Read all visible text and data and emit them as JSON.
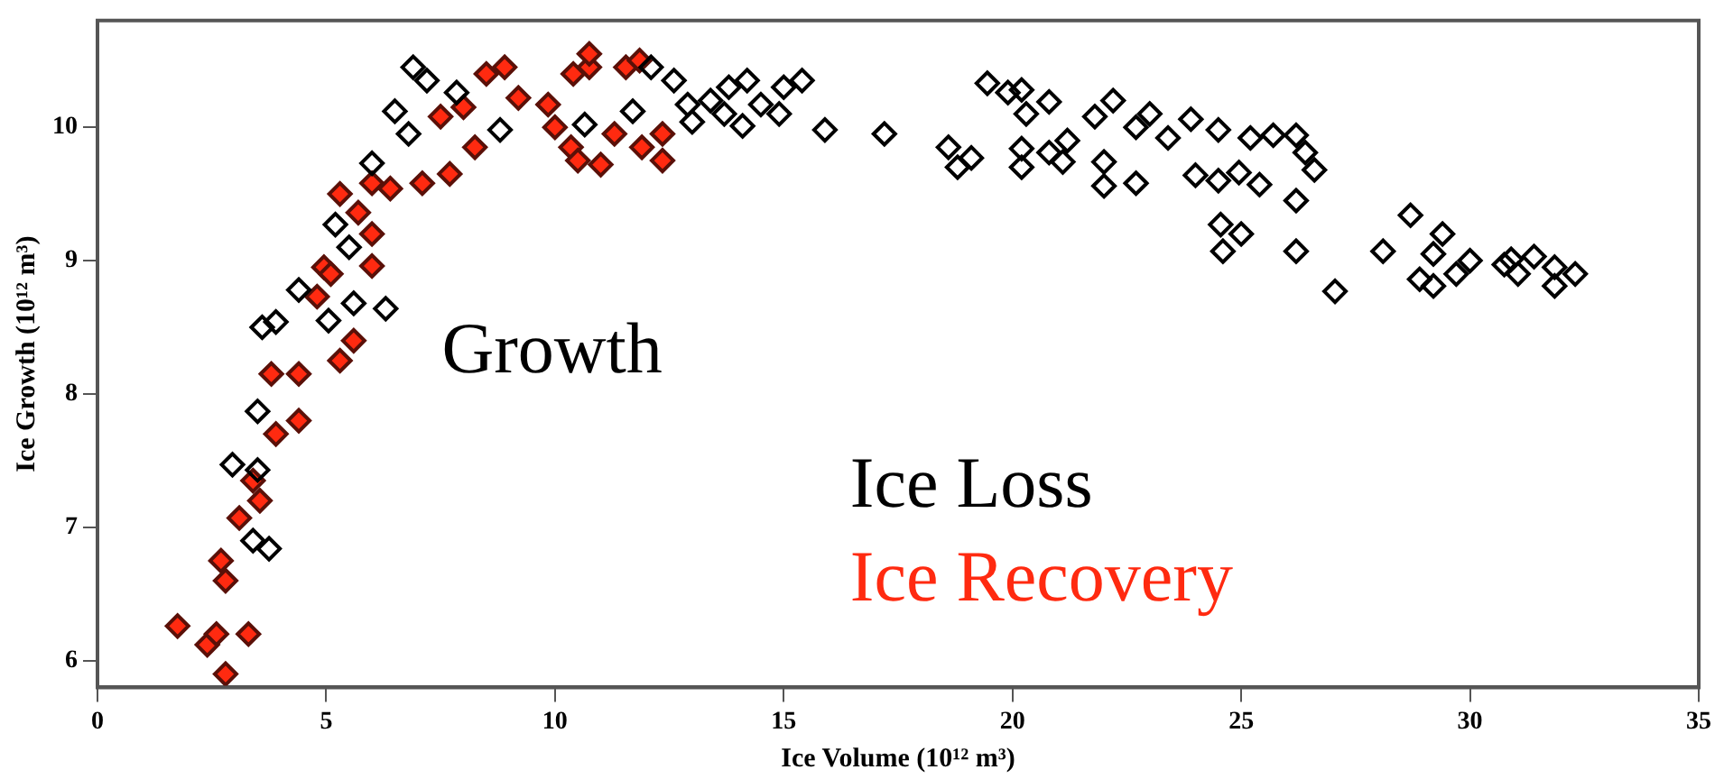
{
  "chart_data": {
    "type": "scatter",
    "xlabel": "Ice Volume (10¹² m³)",
    "ylabel": "Ice Growth (10¹² m³)",
    "annotations": [
      "Growth"
    ],
    "xlim": [
      0,
      35
    ],
    "ylim": [
      5.8,
      10.8
    ],
    "xticks": [
      0,
      5,
      10,
      15,
      20,
      25,
      30,
      35
    ],
    "yticks": [
      6,
      7,
      8,
      9,
      10
    ],
    "grid": false,
    "marker": "diamond",
    "legend": "bottom",
    "series": [
      {
        "name": "Ice Loss",
        "color": "#000000",
        "x": [
          6.9,
          7.2,
          6.5,
          6.8,
          6.0,
          5.2,
          5.5,
          6.3,
          5.6,
          4.4,
          3.6,
          3.9,
          3.5,
          2.95,
          3.5,
          3.75,
          3.4,
          5.05,
          7.85,
          8.8,
          10.65,
          11.7,
          12.1,
          12.6,
          13.0,
          13.4,
          13.8,
          14.1,
          14.5,
          15.0,
          15.4,
          14.9,
          15.9,
          12.9,
          13.7,
          14.2,
          17.2,
          18.6,
          19.1,
          18.8,
          19.45,
          19.9,
          20.2,
          20.8,
          20.3,
          20.2,
          20.2,
          20.8,
          21.2,
          21.1,
          21.8,
          22.2,
          22.0,
          22.0,
          22.7,
          22.7,
          23.0,
          23.4,
          23.9,
          24.5,
          24.0,
          24.5,
          24.95,
          25.4,
          25.2,
          25.7,
          26.2,
          26.4,
          26.6,
          26.2,
          24.55,
          25.0,
          24.6,
          26.2,
          27.05,
          28.1,
          28.7,
          29.4,
          29.2,
          28.9,
          29.2,
          30.0,
          29.7,
          30.75,
          31.05,
          31.4,
          31.85,
          31.85,
          32.3,
          30.9
        ],
        "values": [
          10.45,
          10.35,
          10.12,
          9.95,
          9.73,
          9.27,
          9.1,
          8.64,
          8.68,
          8.78,
          8.5,
          8.54,
          7.87,
          7.47,
          7.43,
          6.84,
          6.9,
          8.55,
          10.26,
          9.98,
          10.02,
          10.12,
          10.45,
          10.35,
          10.04,
          10.2,
          10.3,
          10.01,
          10.17,
          10.3,
          10.35,
          10.1,
          9.98,
          10.17,
          10.1,
          10.35,
          9.95,
          9.85,
          9.77,
          9.7,
          10.33,
          10.26,
          10.28,
          10.19,
          10.1,
          9.84,
          9.7,
          9.81,
          9.9,
          9.74,
          10.08,
          10.2,
          9.56,
          9.74,
          9.58,
          10.0,
          10.1,
          9.92,
          10.06,
          9.98,
          9.64,
          9.6,
          9.66,
          9.57,
          9.92,
          9.94,
          9.94,
          9.81,
          9.68,
          9.45,
          9.27,
          9.2,
          9.07,
          9.07,
          8.77,
          9.07,
          9.34,
          9.2,
          9.05,
          8.86,
          8.81,
          9.0,
          8.9,
          8.97,
          8.9,
          9.03,
          8.95,
          8.81,
          8.9,
          9.01
        ]
      },
      {
        "name": "Ice Recovery",
        "color": "#ff2a10",
        "x": [
          1.75,
          2.4,
          2.8,
          2.6,
          3.3,
          2.7,
          2.8,
          3.1,
          3.4,
          3.55,
          3.9,
          4.4,
          3.8,
          4.4,
          5.3,
          5.6,
          4.8,
          4.95,
          5.1,
          6.0,
          6.0,
          5.7,
          5.3,
          6.0,
          6.4,
          7.1,
          7.7,
          7.5,
          8.0,
          8.25,
          8.5,
          8.9,
          9.2,
          9.85,
          10.0,
          10.35,
          10.75,
          10.75,
          11.55,
          11.85,
          11.3,
          11.0,
          10.5,
          11.9,
          12.35,
          12.35,
          10.4
        ],
        "values": [
          6.26,
          6.12,
          5.9,
          6.2,
          6.2,
          6.75,
          6.6,
          7.07,
          7.35,
          7.2,
          7.7,
          7.8,
          8.15,
          8.15,
          8.25,
          8.4,
          8.73,
          8.95,
          8.9,
          8.96,
          9.2,
          9.36,
          9.5,
          9.58,
          9.54,
          9.58,
          9.65,
          10.08,
          10.15,
          9.85,
          10.4,
          10.45,
          10.22,
          10.17,
          10.0,
          9.85,
          10.45,
          10.55,
          10.45,
          10.5,
          9.95,
          9.72,
          9.75,
          9.85,
          9.95,
          9.75,
          10.4
        ]
      }
    ]
  }
}
